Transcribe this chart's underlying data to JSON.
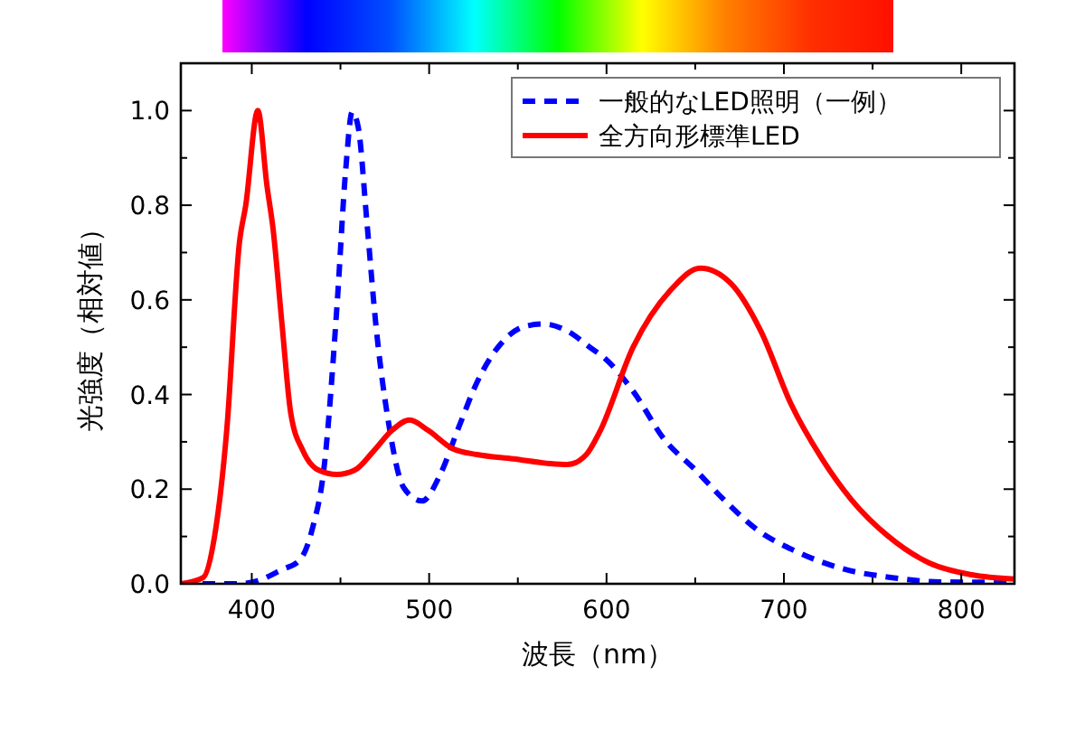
{
  "chart_data": {
    "type": "line",
    "xlabel": "波長（nm）",
    "ylabel": "光強度（相対値）",
    "xlim": [
      360,
      830
    ],
    "xticks": [
      400,
      {
        "value": 450,
        "label": null
      },
      500,
      {
        "value": 550,
        "label": null
      },
      600,
      {
        "value": 650,
        "label": null
      },
      700,
      {
        "value": 750,
        "label": null
      },
      800
    ],
    "ylim": [
      0,
      1.1
    ],
    "yticks": [
      {
        "value": 0,
        "label": "0.0"
      },
      {
        "value": 0.1,
        "label": null
      },
      {
        "value": 0.2,
        "label": "0.2"
      },
      {
        "value": 0.3,
        "label": null
      },
      {
        "value": 0.4,
        "label": "0.4"
      },
      {
        "value": 0.5,
        "label": null
      },
      {
        "value": 0.6,
        "label": "0.6"
      },
      {
        "value": 0.7,
        "label": null
      },
      {
        "value": 0.8,
        "label": "0.8"
      },
      {
        "value": 0.9,
        "label": null
      },
      {
        "value": 1.0,
        "label": "1.0"
      }
    ],
    "grid": false,
    "legend": "top right",
    "marker": "none",
    "series": [
      {
        "name": "一般的なLED照明（一例）",
        "color": "#0000ff",
        "line_style": "dashed",
        "x": [
          360,
          393,
          403,
          417,
          427,
          434,
          441,
          448,
          453,
          456.6,
          460,
          465,
          470,
          477,
          485.7,
          496,
          506,
          516.6,
          527,
          540.6,
          554,
          564.6,
          578,
          592,
          597,
          615,
          632.6,
          650,
          667.7,
          685,
          706,
          733,
          761,
          788,
          830
        ],
        "values": [
          0,
          0,
          0.006,
          0.03,
          0.05,
          0.114,
          0.254,
          0.585,
          0.877,
          0.997,
          0.965,
          0.76,
          0.546,
          0.343,
          0.203,
          0.175,
          0.229,
          0.33,
          0.426,
          0.508,
          0.544,
          0.549,
          0.534,
          0.496,
          0.483,
          0.407,
          0.305,
          0.241,
          0.172,
          0.114,
          0.07,
          0.032,
          0.013,
          0.004,
          0.003
        ]
      },
      {
        "name": "全方向形標準LED",
        "color": "#ff0000",
        "line_style": "solid",
        "x": [
          360,
          372.6,
          379,
          386,
          393,
          396.6,
          403.4,
          408.6,
          412,
          417,
          422,
          429,
          437.7,
          448,
          458,
          468.6,
          479,
          489,
          499.5,
          513,
          527,
          547.5,
          568,
          578,
          588.6,
          596,
          615,
          636,
          653,
          670,
          687,
          704,
          721,
          738,
          759,
          782,
          806,
          830
        ],
        "values": [
          0,
          0.013,
          0.1,
          0.33,
          0.72,
          0.8,
          1.0,
          0.84,
          0.75,
          0.55,
          0.36,
          0.28,
          0.24,
          0.231,
          0.24,
          0.28,
          0.324,
          0.346,
          0.324,
          0.286,
          0.273,
          0.264,
          0.254,
          0.252,
          0.273,
          0.32,
          0.5,
          0.62,
          0.667,
          0.635,
          0.534,
          0.38,
          0.267,
          0.178,
          0.1,
          0.044,
          0.019,
          0.01
        ]
      }
    ]
  }
}
